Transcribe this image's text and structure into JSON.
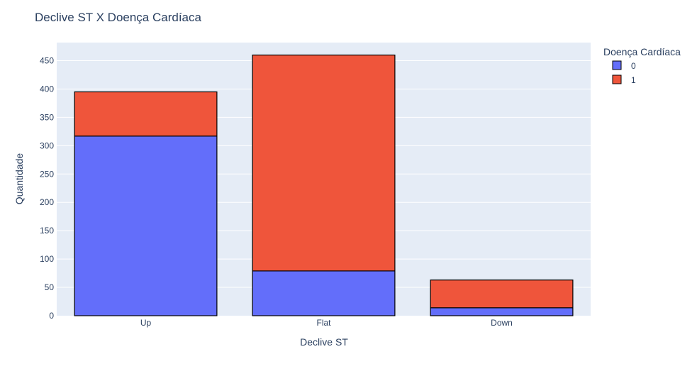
{
  "chart_data": {
    "type": "bar",
    "barmode": "stack",
    "title": "Declive ST X Doença Cardíaca",
    "xlabel": "Declive ST",
    "ylabel": "Quantidade",
    "categories": [
      "Up",
      "Flat",
      "Down"
    ],
    "series": [
      {
        "name": "0",
        "values": [
          317,
          79,
          14
        ],
        "color": "#636efa"
      },
      {
        "name": "1",
        "values": [
          78,
          381,
          49
        ],
        "color": "#ef553b"
      }
    ],
    "ylim": [
      0,
      482
    ],
    "yticks": [
      0,
      50,
      100,
      150,
      200,
      250,
      300,
      350,
      400,
      450
    ],
    "grid": true,
    "legend": {
      "title": "Doença Cardíaca",
      "position": "top-right"
    },
    "colors": {
      "plot_background": "#e5ecf6",
      "grid": "#ffffff",
      "bar_outline": "#000000",
      "text": "#2a3f5f"
    }
  }
}
